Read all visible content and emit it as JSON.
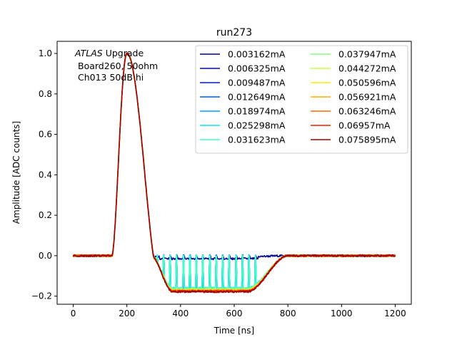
{
  "chart_data": {
    "type": "line",
    "title": "run273",
    "xlabel": "Time [ns]",
    "ylabel": "Amplitude [ADC counts]",
    "xlim": [
      -60,
      1260
    ],
    "ylim": [
      -0.24,
      1.06
    ],
    "xticks": [
      0,
      200,
      400,
      600,
      800,
      1000,
      1200
    ],
    "xtick_labels": [
      "0",
      "200",
      "400",
      "600",
      "800",
      "1000",
      "1200"
    ],
    "yticks": [
      -0.2,
      0.0,
      0.2,
      0.4,
      0.6,
      0.8,
      1.0
    ],
    "ytick_labels": [
      "−0.2",
      "0.0",
      "0.2",
      "0.4",
      "0.6",
      "0.8",
      "1.0"
    ],
    "grid": false,
    "legend_position": "top-right",
    "legend_columns": 2,
    "annotation": {
      "italic": "ATLAS",
      "rest": " Upgrade",
      "line2": "Board260, 50ohm",
      "line3": "Ch013 50dB hi"
    },
    "series": [
      {
        "name": "0.003162mA",
        "color": "#00008f",
        "min": -0.005,
        "pulses": true
      },
      {
        "name": "0.006325mA",
        "color": "#0000d0",
        "min": -0.175,
        "pulses": true
      },
      {
        "name": "0.009487mA",
        "color": "#0010ff",
        "min": -0.175,
        "pulses": true
      },
      {
        "name": "0.012649mA",
        "color": "#0058ff",
        "min": -0.175,
        "pulses": true
      },
      {
        "name": "0.018974mA",
        "color": "#00a0ff",
        "min": -0.165,
        "pulses": true
      },
      {
        "name": "0.025298mA",
        "color": "#10e0ff",
        "min": -0.16,
        "pulses": true
      },
      {
        "name": "0.031623mA",
        "color": "#40ffc8",
        "min": -0.16,
        "pulses": true
      },
      {
        "name": "0.037947mA",
        "color": "#80ff80",
        "min": -0.165,
        "pulses": false
      },
      {
        "name": "0.044272mA",
        "color": "#c0ff40",
        "min": -0.168,
        "pulses": false
      },
      {
        "name": "0.050596mA",
        "color": "#ffea00",
        "min": -0.17,
        "pulses": false
      },
      {
        "name": "0.056921mA",
        "color": "#ffae00",
        "min": -0.172,
        "pulses": false
      },
      {
        "name": "0.063246mA",
        "color": "#ff6800",
        "min": -0.174,
        "pulses": false
      },
      {
        "name": "0.06957mA",
        "color": "#f01d00",
        "min": -0.176,
        "pulses": false
      },
      {
        "name": "0.075895mA",
        "color": "#a00000",
        "min": -0.178,
        "pulses": false
      }
    ],
    "x_range": [
      0,
      1200
    ],
    "pulse_peak_time": 200,
    "pulse_peak": 1.0,
    "undershoot_start": 290,
    "undershoot_end": 650,
    "recovery_end": 800
  }
}
